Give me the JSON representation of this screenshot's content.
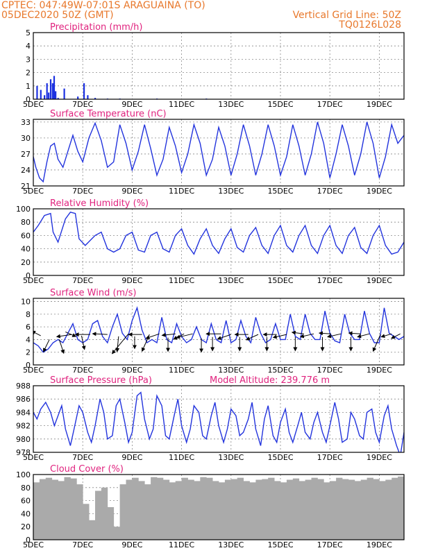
{
  "header": {
    "line1": "CPTEC:  047:49W-07:01S  ARAGUAINA (TO)",
    "line2": "05DEC2020 50Z (GMT)",
    "grid_line": "Vertical Grid Line: 50Z",
    "code": "TQ0126L028"
  },
  "colors": {
    "line": "#2233dd",
    "bar": "#1a2fe0",
    "cloud": "#aaaaaa",
    "title": "#e0227e",
    "header": "#e8782b",
    "grid": "#888888"
  },
  "chart_data": [
    {
      "id": "precipitation",
      "type": "bar",
      "title": "Precipitation (mm/h)",
      "ylim": [
        0,
        5
      ],
      "yticks": [
        0,
        1,
        2,
        3,
        4,
        5
      ],
      "xlim": [
        0,
        15
      ],
      "xlabels": [
        "5DEC",
        "7DEC",
        "9DEC",
        "11DEC",
        "13DEC",
        "15DEC",
        "17DEC",
        "19DEC"
      ],
      "x": [
        0.15,
        0.3,
        0.45,
        0.55,
        0.62,
        0.7,
        0.78,
        0.84,
        0.9,
        1.0,
        1.25,
        1.8,
        2.05,
        2.2,
        2.5,
        3.0,
        3.5,
        5.0,
        7.0
      ],
      "values": [
        1.0,
        0.7,
        0.3,
        1.2,
        0.5,
        1.5,
        1.2,
        1.75,
        0.6,
        0.1,
        0.8,
        0.2,
        1.2,
        0.3,
        0.1,
        0.05,
        0.05,
        0.05,
        0.05
      ]
    },
    {
      "id": "temperature",
      "type": "line",
      "title": "Surface Temperature (nC)",
      "ylim": [
        21,
        33.5
      ],
      "yticks": [
        21,
        24,
        27,
        30,
        33
      ],
      "xlim": [
        0,
        15
      ],
      "xlabels": [
        "5DEC",
        "7DEC",
        "9DEC",
        "11DEC",
        "13DEC",
        "15DEC",
        "17DEC",
        "19DEC"
      ],
      "x": [
        0,
        0.1,
        0.25,
        0.4,
        0.55,
        0.7,
        0.85,
        1.0,
        1.2,
        1.4,
        1.6,
        1.8,
        2.0,
        2.25,
        2.5,
        2.75,
        3.0,
        3.25,
        3.5,
        3.75,
        4.0,
        4.25,
        4.5,
        4.75,
        5.0,
        5.25,
        5.5,
        5.75,
        6.0,
        6.25,
        6.5,
        6.75,
        7.0,
        7.25,
        7.5,
        7.75,
        8.0,
        8.25,
        8.5,
        8.75,
        9.0,
        9.25,
        9.5,
        9.75,
        10.0,
        10.25,
        10.5,
        10.75,
        11.0,
        11.25,
        11.5,
        11.75,
        12.0,
        12.25,
        12.5,
        12.75,
        13.0,
        13.25,
        13.5,
        13.75,
        14.0,
        14.25,
        14.5,
        14.75,
        15.0
      ],
      "values": [
        26.5,
        24.5,
        22.5,
        21.8,
        25.5,
        28.5,
        29.0,
        26.0,
        24.5,
        27.5,
        30.5,
        27.5,
        25.5,
        30.0,
        32.8,
        29.5,
        24.5,
        25.5,
        32.5,
        29.0,
        24.0,
        27.5,
        32.5,
        28.0,
        23.0,
        26.0,
        32.0,
        28.5,
        23.5,
        27.0,
        32.5,
        29.0,
        23.0,
        26.0,
        32.0,
        28.5,
        23.0,
        27.0,
        32.5,
        28.5,
        23.0,
        27.0,
        32.5,
        28.5,
        23.0,
        26.5,
        32.5,
        28.5,
        23.0,
        27.0,
        33.0,
        29.0,
        22.5,
        27.0,
        32.5,
        28.5,
        23.0,
        27.0,
        33.0,
        29.0,
        22.5,
        26.5,
        32.5,
        29.0,
        30.5
      ]
    },
    {
      "id": "humidity",
      "type": "line",
      "title": "Relative Humidity (%)",
      "ylim": [
        0,
        100
      ],
      "yticks": [
        0,
        20,
        40,
        60,
        80,
        100
      ],
      "xlim": [
        0,
        15
      ],
      "xlabels": [
        "5DEC",
        "7DEC",
        "9DEC",
        "11DEC",
        "13DEC",
        "15DEC",
        "17DEC",
        "19DEC"
      ],
      "x": [
        0,
        0.2,
        0.45,
        0.7,
        0.8,
        1.0,
        1.3,
        1.5,
        1.7,
        1.85,
        2.1,
        2.5,
        2.75,
        3.0,
        3.25,
        3.5,
        3.75,
        4.0,
        4.25,
        4.5,
        4.75,
        5.0,
        5.25,
        5.5,
        5.75,
        6.0,
        6.25,
        6.5,
        6.75,
        7.0,
        7.25,
        7.5,
        7.75,
        8.0,
        8.25,
        8.5,
        8.75,
        9.0,
        9.25,
        9.5,
        9.75,
        10.0,
        10.25,
        10.5,
        10.75,
        11.0,
        11.25,
        11.5,
        11.75,
        12.0,
        12.25,
        12.5,
        12.75,
        13.0,
        13.25,
        13.5,
        13.75,
        14.0,
        14.25,
        14.5,
        14.75,
        15.0
      ],
      "values": [
        65,
        75,
        90,
        93,
        65,
        50,
        85,
        95,
        93,
        55,
        45,
        60,
        65,
        40,
        35,
        40,
        60,
        65,
        38,
        35,
        60,
        65,
        40,
        35,
        60,
        70,
        45,
        32,
        55,
        70,
        45,
        33,
        55,
        70,
        42,
        35,
        60,
        72,
        45,
        33,
        60,
        75,
        45,
        35,
        60,
        75,
        45,
        33,
        60,
        75,
        45,
        33,
        60,
        72,
        42,
        33,
        60,
        75,
        45,
        32,
        35,
        50
      ]
    },
    {
      "id": "wind",
      "type": "line",
      "title": "Surface Wind (m/s)",
      "ylim": [
        0,
        10.5
      ],
      "yticks": [
        0,
        2,
        4,
        6,
        8,
        10
      ],
      "xlim": [
        0,
        15
      ],
      "xlabels": [
        "5DEC",
        "7DEC",
        "9DEC",
        "11DEC",
        "13DEC",
        "15DEC",
        "17DEC",
        "19DEC"
      ],
      "x": [
        0,
        0.2,
        0.4,
        0.6,
        0.8,
        1.0,
        1.2,
        1.4,
        1.6,
        1.8,
        2.0,
        2.2,
        2.4,
        2.6,
        2.8,
        3.0,
        3.2,
        3.4,
        3.6,
        3.8,
        4.0,
        4.2,
        4.4,
        4.6,
        4.8,
        5.0,
        5.2,
        5.4,
        5.6,
        5.8,
        6.0,
        6.2,
        6.4,
        6.6,
        6.8,
        7.0,
        7.2,
        7.4,
        7.6,
        7.8,
        8.0,
        8.2,
        8.4,
        8.6,
        8.8,
        9.0,
        9.2,
        9.4,
        9.6,
        9.8,
        10.0,
        10.2,
        10.4,
        10.6,
        10.8,
        11.0,
        11.2,
        11.4,
        11.6,
        11.8,
        12.0,
        12.2,
        12.4,
        12.6,
        12.8,
        13.0,
        13.2,
        13.4,
        13.6,
        13.8,
        14.0,
        14.2,
        14.4,
        14.6,
        14.8,
        15.0
      ],
      "values": [
        3.5,
        3.0,
        2.0,
        2.5,
        3.5,
        4.0,
        3.5,
        5.0,
        6.5,
        4.0,
        3.5,
        4.0,
        6.5,
        7.0,
        4.5,
        3.5,
        6.0,
        8.0,
        5.0,
        4.0,
        7.0,
        9.0,
        5.5,
        3.5,
        4.0,
        3.5,
        7.5,
        4.0,
        3.5,
        6.5,
        4.5,
        3.5,
        4.0,
        6.0,
        4.0,
        3.5,
        6.5,
        4.0,
        3.5,
        7.0,
        3.5,
        4.0,
        7.0,
        4.5,
        3.5,
        7.5,
        5.0,
        3.5,
        4.0,
        6.5,
        4.0,
        4.0,
        8.0,
        4.5,
        4.0,
        8.0,
        5.0,
        4.0,
        4.0,
        8.5,
        5.0,
        3.8,
        3.5,
        8.0,
        5.0,
        4.0,
        4.0,
        8.5,
        5.0,
        3.5,
        3.5,
        9.0,
        5.0,
        4.5,
        4.0,
        4.5
      ],
      "vectors": [
        {
          "x": 0.3,
          "y": 4.6,
          "u": -0.6,
          "v": 0.6
        },
        {
          "x": 0.65,
          "y": 4.0,
          "u": -0.4,
          "v": -1.6
        },
        {
          "x": 1.05,
          "y": 4.0,
          "u": 0.3,
          "v": -1.8
        },
        {
          "x": 1.3,
          "y": 5.2,
          "u": 0.7,
          "v": -0.6
        },
        {
          "x": 1.55,
          "y": 4.8,
          "u": -1.0,
          "v": -0.3
        },
        {
          "x": 1.95,
          "y": 4.6,
          "u": 0.2,
          "v": -1.8
        },
        {
          "x": 2.3,
          "y": 4.8,
          "u": -1.0,
          "v": 0.0
        },
        {
          "x": 3.0,
          "y": 4.8,
          "u": -1.0,
          "v": 0.1
        },
        {
          "x": 3.45,
          "y": 4.5,
          "u": -0.1,
          "v": -2.0
        },
        {
          "x": 3.85,
          "y": 4.9,
          "u": -1.1,
          "v": -2.6
        },
        {
          "x": 4.1,
          "y": 4.5,
          "u": 0.0,
          "v": -1.6
        },
        {
          "x": 4.4,
          "y": 4.8,
          "u": -0.9,
          "v": 0.0
        },
        {
          "x": 4.7,
          "y": 4.8,
          "u": -0.5,
          "v": -2.2
        },
        {
          "x": 5.1,
          "y": 4.9,
          "u": -0.9,
          "v": -0.6
        },
        {
          "x": 5.45,
          "y": 4.3,
          "u": 0.0,
          "v": -1.8
        },
        {
          "x": 5.75,
          "y": 4.9,
          "u": -0.9,
          "v": -0.2
        },
        {
          "x": 6.1,
          "y": 4.9,
          "u": -0.7,
          "v": -0.7
        },
        {
          "x": 6.45,
          "y": 4.9,
          "u": -1.1,
          "v": -0.5
        },
        {
          "x": 6.8,
          "y": 4.2,
          "u": 0.0,
          "v": -1.8
        },
        {
          "x": 7.25,
          "y": 4.4,
          "u": 0.0,
          "v": -1.8
        },
        {
          "x": 7.6,
          "y": 4.9,
          "u": -1.0,
          "v": 0.0
        },
        {
          "x": 8.0,
          "y": 4.8,
          "u": -0.9,
          "v": -0.6
        },
        {
          "x": 8.35,
          "y": 4.4,
          "u": 0.0,
          "v": -1.8
        },
        {
          "x": 8.7,
          "y": 4.8,
          "u": -0.9,
          "v": 0.0
        },
        {
          "x": 9.1,
          "y": 4.8,
          "u": -0.8,
          "v": -0.7
        },
        {
          "x": 9.45,
          "y": 4.4,
          "u": 0.0,
          "v": -1.8
        },
        {
          "x": 9.85,
          "y": 4.8,
          "u": -0.9,
          "v": 0.0
        },
        {
          "x": 10.25,
          "y": 4.8,
          "u": -0.9,
          "v": -0.4
        },
        {
          "x": 10.6,
          "y": 4.4,
          "u": 0.0,
          "v": -1.8
        },
        {
          "x": 10.95,
          "y": 4.9,
          "u": -0.8,
          "v": 0.2
        },
        {
          "x": 11.35,
          "y": 4.9,
          "u": -0.9,
          "v": -0.4
        },
        {
          "x": 11.7,
          "y": 4.4,
          "u": 0.0,
          "v": -1.8
        },
        {
          "x": 12.05,
          "y": 4.9,
          "u": -0.8,
          "v": 0.1
        },
        {
          "x": 12.45,
          "y": 4.9,
          "u": -0.9,
          "v": -0.4
        },
        {
          "x": 12.85,
          "y": 4.4,
          "u": 0.0,
          "v": -1.8
        },
        {
          "x": 13.25,
          "y": 4.9,
          "u": -0.8,
          "v": 0.1
        },
        {
          "x": 13.6,
          "y": 4.9,
          "u": -0.8,
          "v": -0.4
        },
        {
          "x": 14.05,
          "y": 4.8,
          "u": -0.5,
          "v": -2.2
        },
        {
          "x": 14.5,
          "y": 4.9,
          "u": -0.7,
          "v": -0.4
        },
        {
          "x": 14.85,
          "y": 4.9,
          "u": -0.6,
          "v": -0.6
        }
      ]
    },
    {
      "id": "pressure",
      "type": "line",
      "title": "Surface Pressure (hPa)",
      "subtitle": "Model Altitude: 239.776 m",
      "ylim": [
        978,
        988
      ],
      "yticks": [
        978,
        980,
        982,
        984,
        986,
        988
      ],
      "xlim": [
        0,
        15
      ],
      "xlabels": [
        "5DEC",
        "7DEC",
        "9DEC",
        "11DEC",
        "13DEC",
        "15DEC",
        "17DEC",
        "19DEC"
      ],
      "x": [
        0,
        0.15,
        0.3,
        0.5,
        0.7,
        0.85,
        1.0,
        1.15,
        1.3,
        1.5,
        1.65,
        1.85,
        2.0,
        2.2,
        2.35,
        2.5,
        2.7,
        2.85,
        3.0,
        3.2,
        3.35,
        3.5,
        3.7,
        3.85,
        4.0,
        4.2,
        4.35,
        4.5,
        4.7,
        4.85,
        5.0,
        5.2,
        5.35,
        5.5,
        5.7,
        5.85,
        6.0,
        6.2,
        6.35,
        6.5,
        6.7,
        6.85,
        7.0,
        7.2,
        7.35,
        7.5,
        7.7,
        7.85,
        8.0,
        8.2,
        8.35,
        8.5,
        8.7,
        8.85,
        9.0,
        9.2,
        9.35,
        9.5,
        9.7,
        9.85,
        10.0,
        10.2,
        10.35,
        10.5,
        10.7,
        10.85,
        11.0,
        11.2,
        11.35,
        11.5,
        11.7,
        11.85,
        12.0,
        12.2,
        12.35,
        12.5,
        12.7,
        12.85,
        13.0,
        13.2,
        13.35,
        13.5,
        13.7,
        13.85,
        14.0,
        14.2,
        14.35,
        14.5,
        14.7,
        14.85,
        15.0
      ],
      "values": [
        984.0,
        983.0,
        984.5,
        985.5,
        984.0,
        982.0,
        983.5,
        985.0,
        981.5,
        979.0,
        981.5,
        985.0,
        984.0,
        981.0,
        979.5,
        982.0,
        986.0,
        984.0,
        980.0,
        980.5,
        985.0,
        986.0,
        982.5,
        979.5,
        981.0,
        986.5,
        987.0,
        983.0,
        980.0,
        981.5,
        986.5,
        985.0,
        980.5,
        980.0,
        983.5,
        986.0,
        982.0,
        979.5,
        981.5,
        985.0,
        984.0,
        980.5,
        980.0,
        983.5,
        985.5,
        982.0,
        979.5,
        981.5,
        984.5,
        983.5,
        980.5,
        981.0,
        983.0,
        985.5,
        981.5,
        979.0,
        983.0,
        985.0,
        980.5,
        979.5,
        982.5,
        984.5,
        981.0,
        979.5,
        982.0,
        984.0,
        981.0,
        980.0,
        982.5,
        984.0,
        981.0,
        979.5,
        982.0,
        985.5,
        983.0,
        979.5,
        980.0,
        984.0,
        983.0,
        980.5,
        980.0,
        984.0,
        984.5,
        981.0,
        979.5,
        983.5,
        985.0,
        981.5,
        979.0,
        977.5,
        981.0
      ]
    },
    {
      "id": "cloud",
      "type": "bar",
      "title": "Cloud Cover (%)",
      "ylim": [
        0,
        100
      ],
      "yticks": [
        0,
        20,
        40,
        60,
        80,
        100
      ],
      "xlim": [
        0,
        15
      ],
      "xlabels": [
        "5DEC",
        "7DEC",
        "9DEC",
        "11DEC",
        "13DEC",
        "15DEC",
        "17DEC",
        "19DEC"
      ],
      "x": [
        0.0,
        0.25,
        0.5,
        0.75,
        1.0,
        1.25,
        1.5,
        1.75,
        2.0,
        2.25,
        2.5,
        2.75,
        3.0,
        3.25,
        3.5,
        3.75,
        4.0,
        4.25,
        4.5,
        4.75,
        5.0,
        5.25,
        5.5,
        5.75,
        6.0,
        6.25,
        6.5,
        6.75,
        7.0,
        7.25,
        7.5,
        7.75,
        8.0,
        8.25,
        8.5,
        8.75,
        9.0,
        9.25,
        9.5,
        9.75,
        10.0,
        10.25,
        10.5,
        10.75,
        11.0,
        11.25,
        11.5,
        11.75,
        12.0,
        12.25,
        12.5,
        12.75,
        13.0,
        13.25,
        13.5,
        13.75,
        14.0,
        14.25,
        14.5,
        14.75
      ],
      "values": [
        88,
        93,
        95,
        92,
        90,
        96,
        94,
        85,
        55,
        30,
        75,
        80,
        50,
        20,
        85,
        92,
        95,
        90,
        85,
        96,
        95,
        92,
        88,
        90,
        95,
        92,
        90,
        96,
        95,
        90,
        88,
        92,
        93,
        95,
        90,
        88,
        92,
        93,
        95,
        90,
        88,
        92,
        94,
        90,
        92,
        95,
        93,
        88,
        90,
        95,
        93,
        92,
        90,
        92,
        95,
        93,
        90,
        92,
        95,
        97
      ]
    }
  ]
}
